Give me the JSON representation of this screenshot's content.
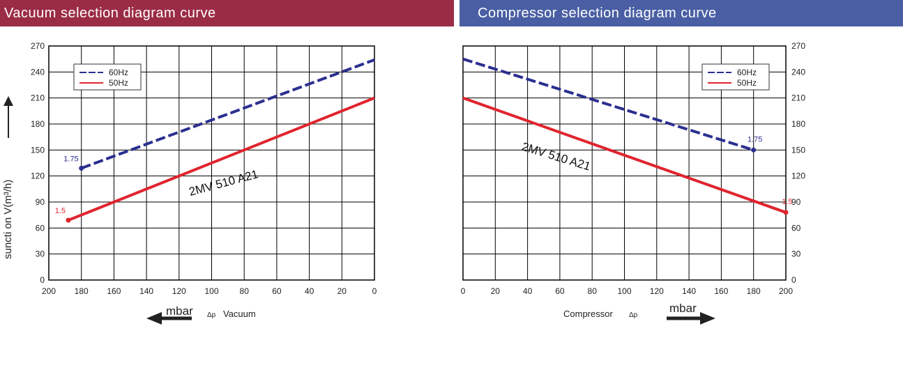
{
  "colors": {
    "series_60hz": "#2b2f8f",
    "series_50hz": "#e0242e",
    "grid": "#000000",
    "banner_left": "#9b2c45",
    "banner_right": "#4a5fa3"
  },
  "chart_data": [
    {
      "type": "line",
      "title": "Vacuum selection diagram curve",
      "ylabel": "suncti on V(m³/h)",
      "xlabel_unit": "mbar",
      "xlabel_suffix": "Vacuum",
      "delta_symbol": "Δp",
      "x_reversed": true,
      "xlim": [
        0,
        200
      ],
      "ylim": [
        0,
        270
      ],
      "x_ticks": [
        200,
        180,
        160,
        140,
        120,
        100,
        80,
        60,
        40,
        20,
        0
      ],
      "y_ticks": [
        0,
        30,
        60,
        90,
        120,
        150,
        180,
        210,
        240,
        270
      ],
      "grid": true,
      "legend": "top-left",
      "model_label": "2MV 510 A21",
      "series": [
        {
          "name": "60Hz",
          "style": "dashed",
          "x": [
            180,
            0
          ],
          "y": [
            129,
            254
          ],
          "end_label": "1.75"
        },
        {
          "name": "50Hz",
          "style": "solid",
          "x": [
            188,
            0
          ],
          "y": [
            69,
            210
          ],
          "end_label": "1.5"
        }
      ]
    },
    {
      "type": "line",
      "title": "Compressor selection diagram curve",
      "ylabel": "",
      "xlabel_prefix": "Compressor",
      "xlabel_unit": "mbar",
      "delta_symbol": "Δp",
      "x_reversed": false,
      "xlim": [
        0,
        200
      ],
      "ylim": [
        0,
        270
      ],
      "x_ticks": [
        0,
        20,
        40,
        60,
        80,
        100,
        120,
        140,
        160,
        180,
        200
      ],
      "y_ticks": [
        0,
        30,
        60,
        90,
        120,
        150,
        180,
        210,
        240,
        270
      ],
      "grid": true,
      "legend": "top-right",
      "model_label": "2MV 510 A21",
      "series": [
        {
          "name": "60Hz",
          "style": "dashed",
          "x": [
            0,
            180
          ],
          "y": [
            255,
            150
          ],
          "end_label": "1.75"
        },
        {
          "name": "50Hz",
          "style": "solid",
          "x": [
            0,
            200
          ],
          "y": [
            210,
            78
          ],
          "end_label": "1.5"
        }
      ]
    }
  ]
}
